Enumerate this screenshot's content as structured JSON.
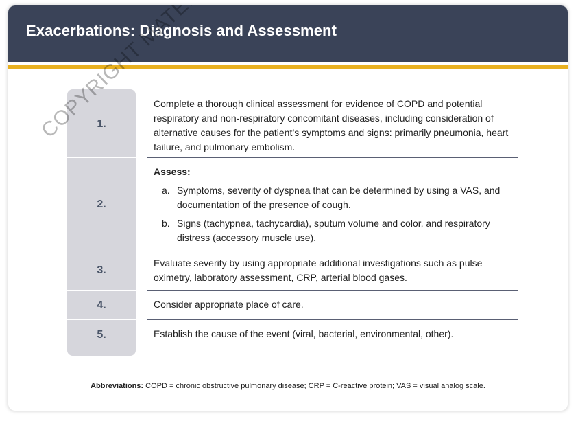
{
  "slide": {
    "title": "Exacerbations: Diagnosis and Assessment",
    "watermark": "COPYRIGHT MATERIAL - D",
    "steps": [
      {
        "number": "1.",
        "text": "Complete a thorough clinical assessment for evidence of COPD and potential respiratory and non-respiratory concomitant diseases, including consideration of alternative causes for the patient’s symptoms and signs: primarily pneumonia, heart failure, and pulmonary embolism."
      },
      {
        "number": "2.",
        "heading": "Assess:",
        "items": [
          {
            "letter": "a.",
            "text": "Symptoms, severity of dyspnea that can be determined by using a VAS, and documentation of the presence of cough."
          },
          {
            "letter": "b.",
            "text": "Signs (tachypnea, tachycardia), sputum volume and color, and respiratory distress (accessory muscle use)."
          }
        ]
      },
      {
        "number": "3.",
        "text": "Evaluate severity by using appropriate additional investigations such as pulse oximetry, laboratory assessment, CRP, arterial blood gases."
      },
      {
        "number": "4.",
        "text": "Consider appropriate place of care."
      },
      {
        "number": "5.",
        "text": "Establish the cause of the event (viral, bacterial, environmental, other)."
      }
    ],
    "footnote": {
      "label": "Abbreviations:",
      "text": "COPD = chronic obstructive pulmonary disease; CRP = C-reactive protein; VAS = visual analog scale."
    }
  },
  "colors": {
    "header": "#3a4358",
    "accent_bar": "#e8b020",
    "number_column": "#d6d6dc",
    "number_text": "#4a5568"
  }
}
